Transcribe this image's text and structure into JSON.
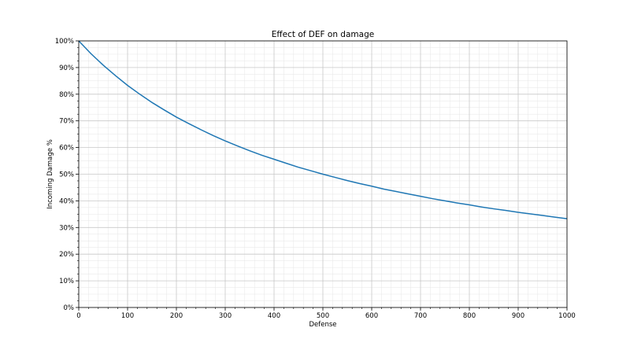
{
  "chart_data": {
    "type": "line",
    "title": "Effect of DEF on damage",
    "xlabel": "Defense",
    "ylabel": "Incoming Damage %",
    "xlim": [
      0,
      1000
    ],
    "ylim": [
      0,
      100
    ],
    "xticks": [
      "0",
      "100",
      "200",
      "300",
      "400",
      "500",
      "600",
      "700",
      "800",
      "900",
      "1000"
    ],
    "yticks": [
      "0%",
      "10%",
      "20%",
      "30%",
      "40%",
      "50%",
      "60%",
      "70%",
      "80%",
      "90%",
      "100%"
    ],
    "grid": true,
    "minor_grid": true,
    "series": [
      {
        "color": "#1f77b4",
        "x": [
          0,
          25,
          50,
          75,
          100,
          125,
          150,
          175,
          200,
          225,
          250,
          275,
          300,
          325,
          350,
          375,
          400,
          425,
          450,
          475,
          500,
          525,
          550,
          575,
          600,
          625,
          650,
          675,
          700,
          725,
          750,
          775,
          800,
          825,
          850,
          875,
          900,
          925,
          950,
          975,
          1000
        ],
        "y": [
          100,
          95.2,
          90.9,
          87.0,
          83.3,
          80.0,
          76.9,
          74.1,
          71.4,
          69.0,
          66.7,
          64.5,
          62.5,
          60.6,
          58.8,
          57.1,
          55.6,
          54.1,
          52.6,
          51.3,
          50.0,
          48.8,
          47.6,
          46.5,
          45.5,
          44.4,
          43.5,
          42.6,
          41.7,
          40.8,
          40.0,
          39.2,
          38.5,
          37.7,
          37.0,
          36.4,
          35.7,
          35.1,
          34.5,
          33.9,
          33.3
        ]
      }
    ]
  }
}
